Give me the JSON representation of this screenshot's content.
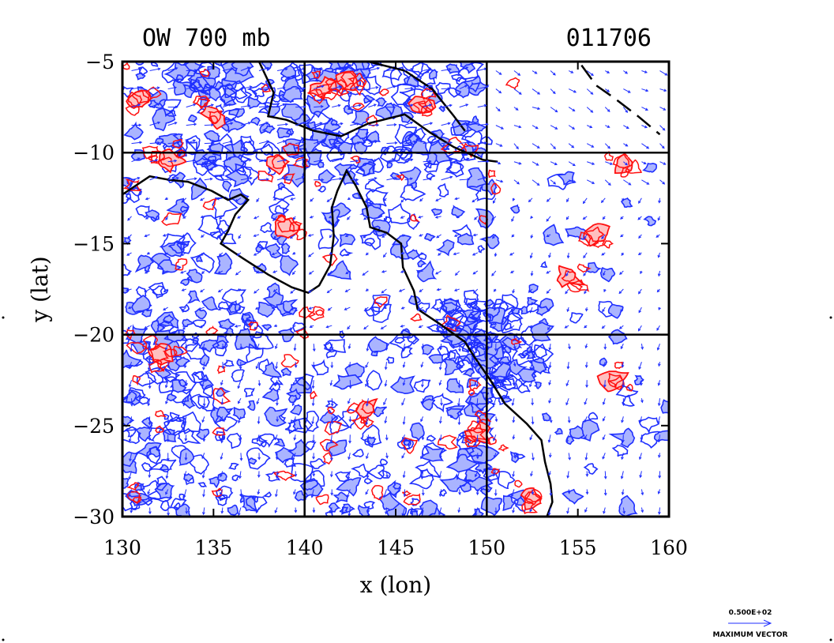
{
  "chart_data": {
    "type": "contour",
    "title_left": "OW 700 mb",
    "title_right": "011706",
    "xlabel": "x (lon)",
    "ylabel": "y (lat)",
    "xlim": [
      130,
      160
    ],
    "ylim": [
      -30,
      -5
    ],
    "x_ticks": [
      "130",
      "135",
      "140",
      "145",
      "150",
      "155",
      "160"
    ],
    "y_ticks": [
      "-5",
      "-10",
      "-15",
      "-20",
      "-25",
      "-30"
    ],
    "grid_lines_x": [
      140,
      150
    ],
    "grid_lines_y": [
      -10,
      -20
    ],
    "series": [
      {
        "kind": "negative contours",
        "color": "#1f2fff",
        "fill": "#aab4ff"
      },
      {
        "kind": "positive contours",
        "color": "#ff1010",
        "fill": "#ffc0c0"
      },
      {
        "kind": "wind vectors",
        "color": "#1f2fff"
      }
    ],
    "positive_centers": [
      {
        "lon": 131,
        "lat": -7
      },
      {
        "lon": 132.5,
        "lat": -10.5
      },
      {
        "lon": 135,
        "lat": -8
      },
      {
        "lon": 138.5,
        "lat": -10.5
      },
      {
        "lon": 139,
        "lat": -14
      },
      {
        "lon": 141,
        "lat": -6.5
      },
      {
        "lon": 142.5,
        "lat": -6
      },
      {
        "lon": 146.5,
        "lat": -7.5
      },
      {
        "lon": 157.5,
        "lat": -10.5
      },
      {
        "lon": 156,
        "lat": -14.5
      },
      {
        "lon": 154.5,
        "lat": -16.8
      },
      {
        "lon": 132,
        "lat": -21
      },
      {
        "lon": 143.5,
        "lat": -24
      },
      {
        "lon": 149.5,
        "lat": -25.5
      },
      {
        "lon": 152.5,
        "lat": -29
      },
      {
        "lon": 157,
        "lat": -22.5
      }
    ],
    "legend": {
      "vector_value": "0.500E+02",
      "vector_label": "MAXIMUM VECTOR"
    }
  }
}
